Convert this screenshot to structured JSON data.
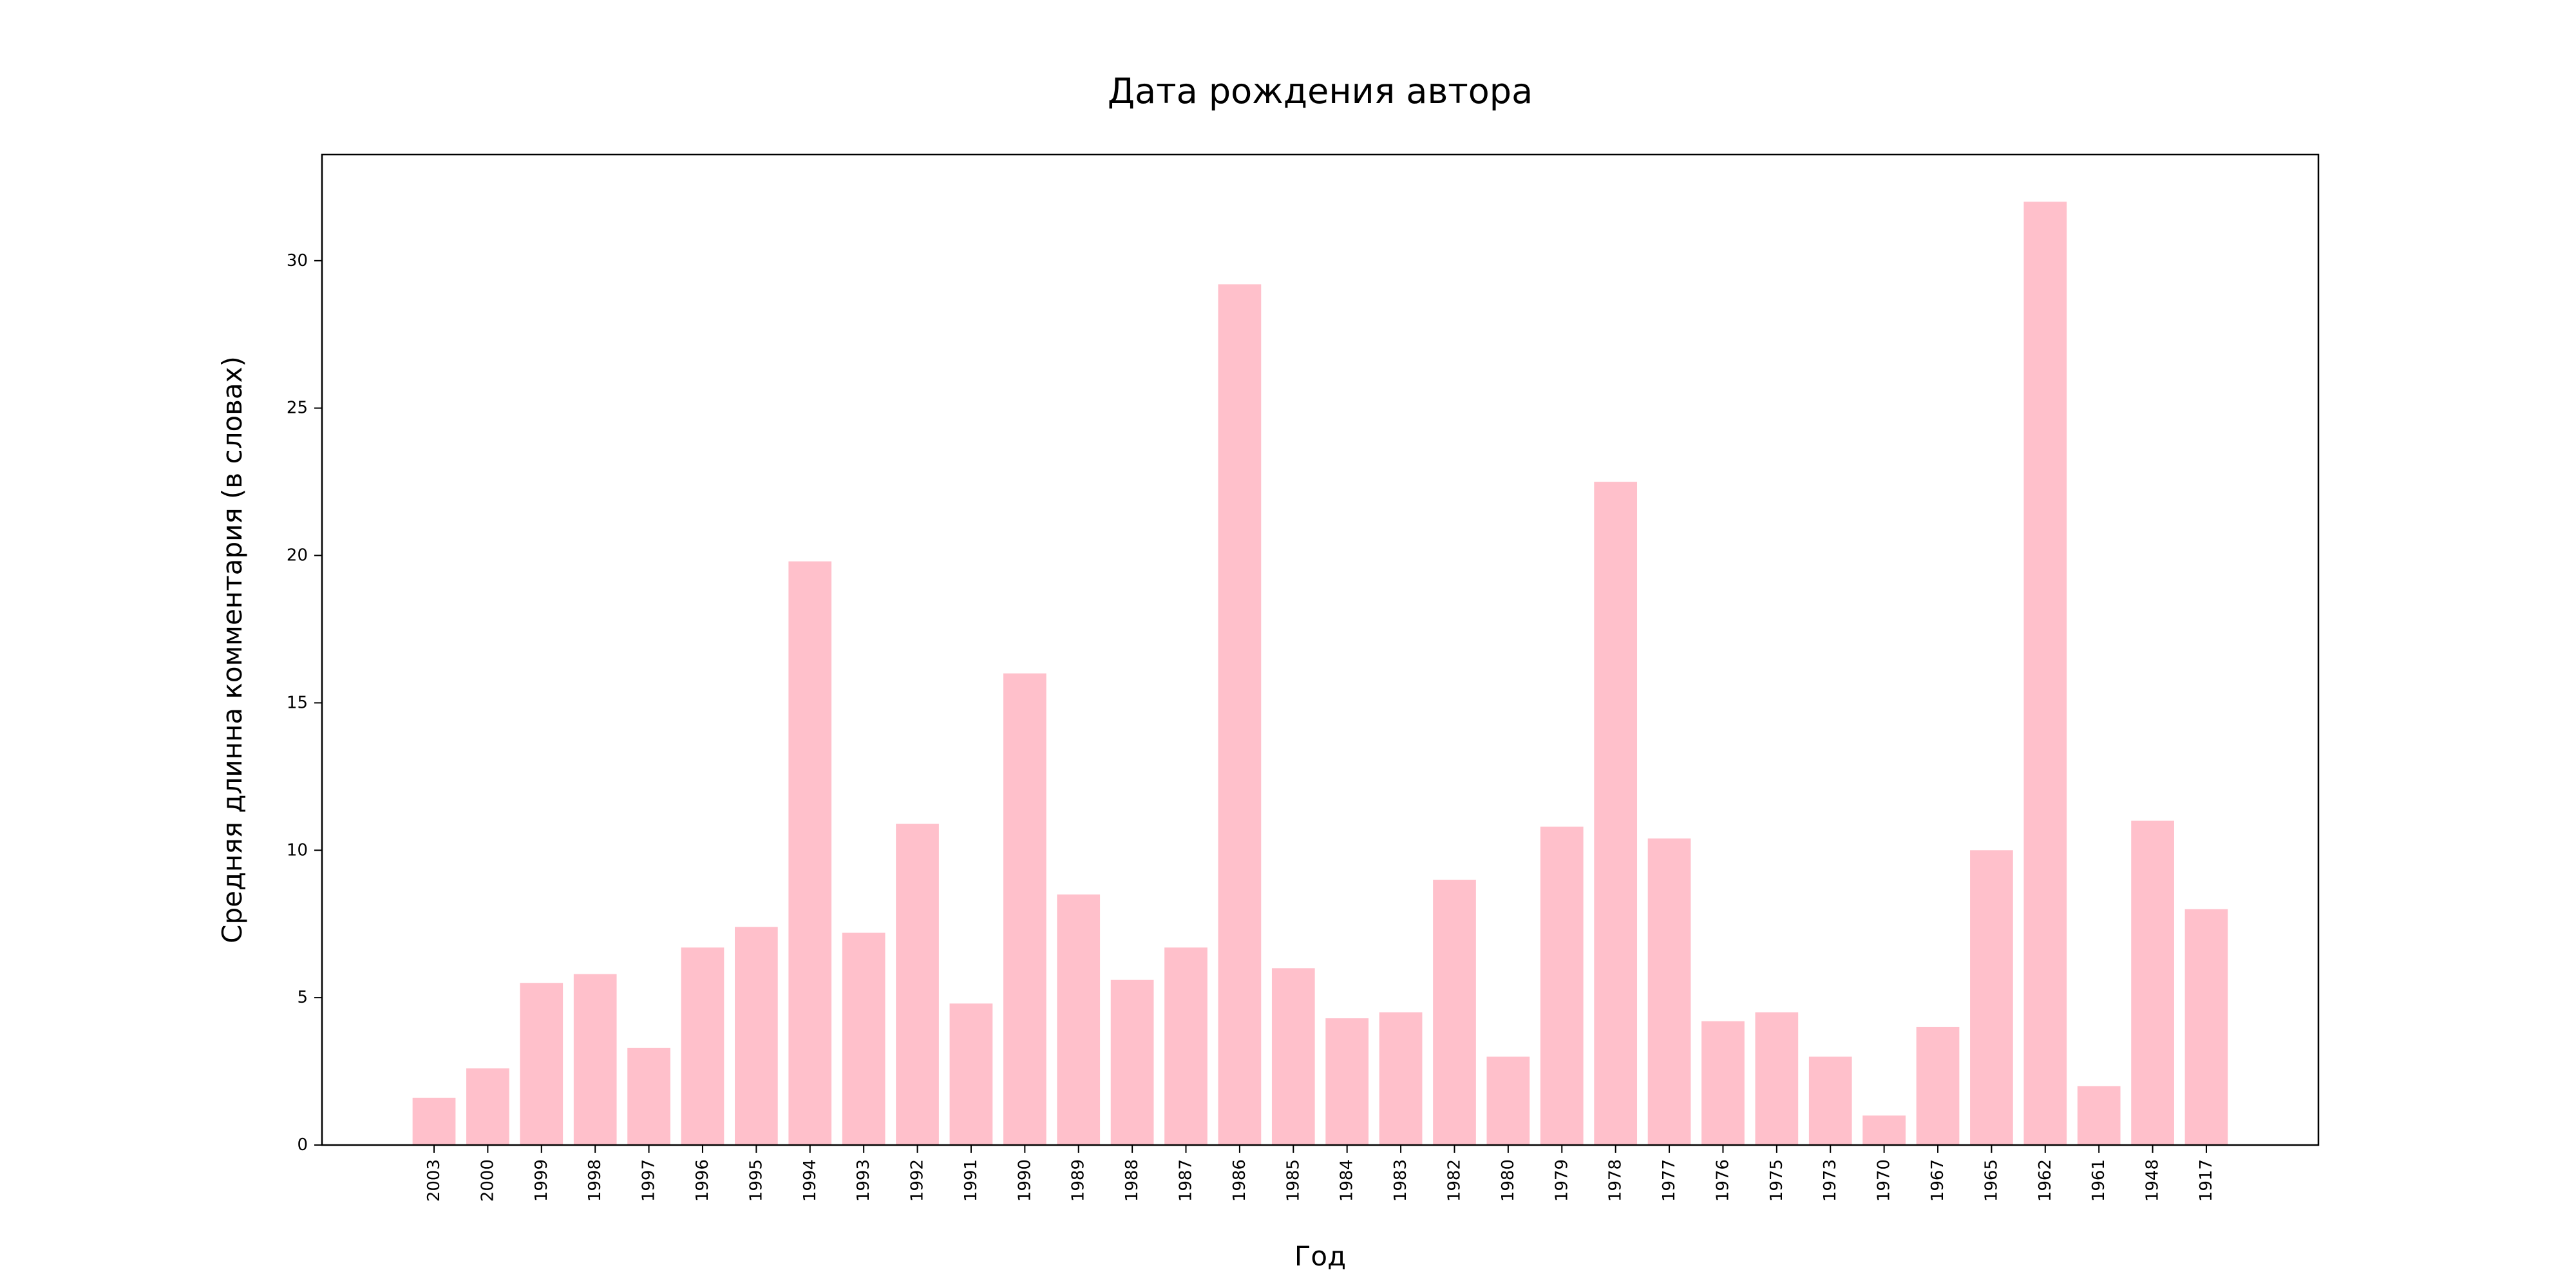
{
  "chart_data": {
    "type": "bar",
    "title": "Дата рождения автора",
    "xlabel": "Год",
    "ylabel": "Средняя длинна комментария (в словах)",
    "categories": [
      "2003",
      "2000",
      "1999",
      "1998",
      "1997",
      "1996",
      "1995",
      "1994",
      "1993",
      "1992",
      "1991",
      "1990",
      "1989",
      "1988",
      "1987",
      "1986",
      "1985",
      "1984",
      "1983",
      "1982",
      "1980",
      "1979",
      "1978",
      "1977",
      "1976",
      "1975",
      "1973",
      "1970",
      "1967",
      "1965",
      "1962",
      "1961",
      "1948",
      "1917"
    ],
    "values": [
      1.6,
      2.6,
      5.5,
      5.8,
      3.3,
      6.7,
      7.4,
      19.8,
      7.2,
      10.9,
      4.8,
      16.0,
      8.5,
      5.6,
      6.7,
      29.2,
      6.0,
      4.3,
      4.5,
      9.0,
      3.0,
      10.8,
      22.5,
      10.4,
      4.2,
      4.5,
      3.0,
      1.0,
      4.0,
      10.0,
      32.0,
      2.0,
      11.0,
      8.0
    ],
    "ylim": [
      0,
      33.6
    ],
    "yticks": [
      0,
      5,
      10,
      15,
      20,
      25,
      30
    ],
    "bar_color": "#ffc0cb",
    "grid": false,
    "legend": false
  }
}
